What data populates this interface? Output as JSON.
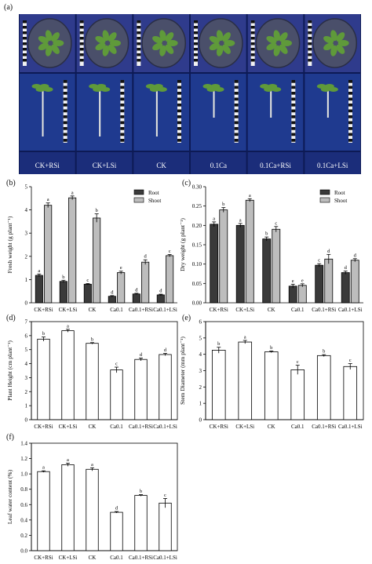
{
  "panel_labels": [
    "(a)",
    "(b)",
    "(c)",
    "(d)",
    "(e)",
    "(f)"
  ],
  "photo_panel": {
    "labels": [
      "CK+RSi",
      "CK+LSi",
      "CK",
      "0.1Ca",
      "0.1Ca+RSi",
      "0.1Ca+LSi"
    ],
    "colors": {
      "top_background": "#2f3b8c",
      "bottom_background": "#1f3a8f",
      "label_bar": "#1b2d7a",
      "leaf": "#5f9a3a"
    }
  },
  "chart_data": [
    {
      "id": "b",
      "type": "bar",
      "ylabel": "Fresh weight (g plant⁻¹)",
      "ylim": [
        0,
        5
      ],
      "yticks": [
        "0",
        "1",
        "2",
        "3",
        "4",
        "5"
      ],
      "categories": [
        "CK+RSi",
        "CK+LSi",
        "CK",
        "Ca0.1",
        "Ca0.1+RSi",
        "Ca0.1+LSi"
      ],
      "legend": {
        "placement": "top-right",
        "entries": [
          "Root",
          "Shoot"
        ]
      },
      "series": [
        {
          "name": "Root",
          "color": "#3a3a3a",
          "values": [
            1.18,
            0.92,
            0.8,
            0.28,
            0.38,
            0.34
          ],
          "errors": [
            0.06,
            0.05,
            0.03,
            0.03,
            0.03,
            0.03
          ],
          "letters": [
            "a",
            "b",
            "c",
            "d",
            "d",
            "d"
          ]
        },
        {
          "name": "Shoot",
          "color": "#bdbdbd",
          "values": [
            4.2,
            4.52,
            3.65,
            1.3,
            1.75,
            2.03
          ],
          "errors": [
            0.1,
            0.08,
            0.18,
            0.06,
            0.1,
            0.05
          ],
          "letters": [
            "a",
            "a",
            "b",
            "e",
            "d",
            "c"
          ]
        }
      ]
    },
    {
      "id": "c",
      "type": "bar",
      "ylabel": "Dry weight (g plant⁻¹)",
      "ylim": [
        0,
        0.3
      ],
      "yticks": [
        "0.00",
        "0.05",
        "0.10",
        "0.15",
        "0.20",
        "0.25",
        "0.30"
      ],
      "categories": [
        "CK+RSi",
        "CK+LSi",
        "CK",
        "Ca0.1",
        "Ca0.1+RSi",
        "Ca0.1+LSi"
      ],
      "legend": {
        "placement": "top-right",
        "entries": [
          "Root",
          "Shoot"
        ]
      },
      "series": [
        {
          "name": "Root",
          "color": "#3a3a3a",
          "values": [
            0.203,
            0.2,
            0.165,
            0.043,
            0.097,
            0.078
          ],
          "errors": [
            0.006,
            0.005,
            0.005,
            0.005,
            0.004,
            0.004
          ],
          "letters": [
            "a",
            "a",
            "b",
            "e",
            "c",
            "d"
          ]
        },
        {
          "name": "Shoot",
          "color": "#bdbdbd",
          "values": [
            0.24,
            0.265,
            0.19,
            0.045,
            0.113,
            0.11
          ],
          "errors": [
            0.006,
            0.004,
            0.007,
            0.004,
            0.012,
            0.004
          ],
          "letters": [
            "b",
            "a",
            "c",
            "e",
            "d",
            "d"
          ]
        }
      ]
    },
    {
      "id": "d",
      "type": "bar",
      "ylabel": "Plant Height (cm plant⁻¹)",
      "ylim": [
        0,
        7
      ],
      "yticks": [
        "0",
        "1",
        "2",
        "3",
        "4",
        "5",
        "6",
        "7"
      ],
      "categories": [
        "CK+RSi",
        "CK+LSi",
        "CK",
        "Ca0.1",
        "Ca0.1+RSi",
        "Ca0.1+LSi"
      ],
      "series": [
        {
          "name": "",
          "color": "#ffffff",
          "values": [
            5.75,
            6.35,
            5.45,
            3.55,
            4.3,
            4.65
          ],
          "errors": [
            0.15,
            0.1,
            0.05,
            0.2,
            0.1,
            0.08
          ],
          "letters": [
            "b",
            "a",
            "b",
            "c",
            "d",
            "d"
          ]
        }
      ]
    },
    {
      "id": "e",
      "type": "bar",
      "ylabel": "Stem Diameter (mm plant⁻¹)",
      "ylim": [
        0,
        6
      ],
      "yticks": [
        "0",
        "1",
        "2",
        "3",
        "4",
        "5",
        "6"
      ],
      "categories": [
        "CK+RSi",
        "CK+LSi",
        "CK",
        "Ca0.1",
        "Ca0.1+RSi",
        "Ca0.1+LSi"
      ],
      "series": [
        {
          "name": "",
          "color": "#ffffff",
          "values": [
            4.25,
            4.75,
            4.15,
            3.05,
            3.92,
            3.25
          ],
          "errors": [
            0.18,
            0.1,
            0.05,
            0.28,
            0.06,
            0.18
          ],
          "letters": [
            "b",
            "a",
            "b",
            "c",
            "b",
            "c"
          ]
        }
      ]
    },
    {
      "id": "f",
      "type": "bar",
      "ylabel": "Leaf water content (%)",
      "ylim": [
        0,
        1.4
      ],
      "yticks": [
        "0.0",
        "0.2",
        "0.4",
        "0.6",
        "0.8",
        "1.0",
        "1.2",
        "1.4"
      ],
      "categories": [
        "CK+RSi",
        "CK+LSi",
        "CK",
        "Ca0.1",
        "Ca0.1+RSi",
        "Ca0.1+LSi"
      ],
      "series": [
        {
          "name": "",
          "color": "#ffffff",
          "values": [
            1.03,
            1.12,
            1.06,
            0.5,
            0.72,
            0.62
          ],
          "errors": [
            0.01,
            0.02,
            0.02,
            0.01,
            0.01,
            0.06
          ],
          "letters": [
            "a",
            "a",
            "a",
            "d",
            "b",
            "c"
          ]
        }
      ]
    }
  ]
}
